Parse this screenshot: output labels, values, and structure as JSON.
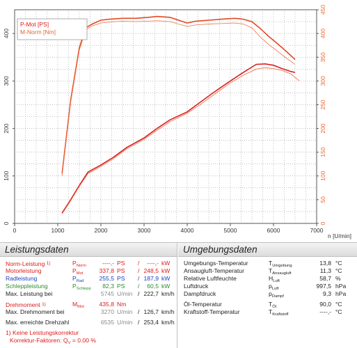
{
  "chart_data": {
    "type": "line",
    "legend": [
      "P-Mot [PS]",
      "M-Norm [Nm]"
    ],
    "legend_position": "top-left",
    "xlabel": "n [U/min]",
    "xlim": [
      0,
      7000
    ],
    "x_ticks": [
      0,
      1000,
      2000,
      3000,
      4000,
      5000,
      6000,
      7000
    ],
    "left_axis": {
      "ylim": [
        0,
        450
      ],
      "ticks": [
        0,
        100,
        200,
        300,
        400
      ]
    },
    "right_axis": {
      "ylim": [
        0,
        450
      ],
      "ticks": [
        0,
        50,
        100,
        150,
        200,
        250,
        300,
        350,
        400,
        450
      ]
    },
    "grid": true,
    "series": [
      {
        "name": "P-Mot [PS]",
        "role": "power",
        "variant": "thick",
        "color": "#d42020",
        "axis": "left",
        "x": [
          1100,
          1300,
          1500,
          1700,
          2000,
          2300,
          2600,
          3000,
          3300,
          3600,
          4000,
          4300,
          4600,
          5000,
          5300,
          5600,
          5800,
          6000,
          6200,
          6400,
          6500
        ],
        "y": [
          22,
          50,
          80,
          108,
          123,
          140,
          160,
          180,
          200,
          218,
          235,
          255,
          275,
          300,
          318,
          335,
          336,
          333,
          326,
          320,
          318
        ]
      },
      {
        "name": "P-Mot [PS]",
        "role": "power",
        "variant": "thin",
        "color": "#ef7050",
        "axis": "left",
        "x": [
          1100,
          1300,
          1500,
          1700,
          2000,
          2300,
          2600,
          3000,
          3300,
          3600,
          4000,
          4300,
          4600,
          5000,
          5300,
          5600,
          5800,
          6000,
          6200,
          6400,
          6600
        ],
        "y": [
          20,
          48,
          78,
          105,
          120,
          137,
          157,
          177,
          196,
          214,
          232,
          250,
          270,
          296,
          312,
          325,
          328,
          326,
          322,
          315,
          300
        ]
      },
      {
        "name": "M-Norm [Nm]",
        "role": "torque",
        "variant": "thick",
        "color": "#e04a20",
        "axis": "right",
        "x": [
          1100,
          1300,
          1500,
          1650,
          1800,
          2000,
          2200,
          2500,
          2800,
          3100,
          3300,
          3600,
          3800,
          4000,
          4200,
          4500,
          4800,
          5100,
          5300,
          5500,
          5700,
          5900,
          6100,
          6300,
          6500
        ],
        "y": [
          105,
          260,
          370,
          412,
          420,
          428,
          430,
          432,
          432,
          434,
          436,
          434,
          428,
          422,
          426,
          428,
          430,
          432,
          430,
          425,
          410,
          393,
          378,
          362,
          345
        ]
      },
      {
        "name": "M-Norm [Nm]",
        "role": "torque",
        "variant": "thin",
        "color": "#f08060",
        "axis": "right",
        "x": [
          1100,
          1300,
          1500,
          1650,
          1800,
          2000,
          2200,
          2500,
          2800,
          3100,
          3300,
          3600,
          3800,
          4000,
          4200,
          4500,
          4800,
          5100,
          5300,
          5500,
          5700,
          5900,
          6100,
          6300,
          6500
        ],
        "y": [
          100,
          255,
          365,
          408,
          416,
          422,
          424,
          426,
          425,
          426,
          427,
          425,
          420,
          415,
          418,
          420,
          421,
          422,
          420,
          412,
          392,
          376,
          362,
          348,
          335
        ]
      }
    ]
  },
  "panels": {
    "left_title": "Leistungsdaten",
    "right_title": "Umgebungsdaten"
  },
  "leistung": {
    "norm": {
      "label": "Norm-Leistung",
      "note": "1)",
      "sym": "P",
      "sub": "Norm",
      "val1": "----,-",
      "unit1": "PS",
      "sep": "/",
      "val2": "----,-",
      "unit2": "kW"
    },
    "motor": {
      "label": "Motorleistung",
      "sym": "P",
      "sub": "Mot",
      "val1": "337,8",
      "unit1": "PS",
      "sep": "/",
      "val2": "248,5",
      "unit2": "kW"
    },
    "rad": {
      "label": "Radleistung",
      "sym": "P",
      "sub": "Rad",
      "val1": "255,5",
      "unit1": "PS",
      "sep": "/",
      "val2": "187,9",
      "unit2": "kW"
    },
    "schlepp": {
      "label": "Schleppleistung",
      "sym": "P",
      "sub": "Schlepp",
      "val1": "82,3",
      "unit1": "PS",
      "sep": "/",
      "val2": "60,5",
      "unit2": "kW"
    },
    "maxbei": {
      "label": "Max. Leistung bei",
      "val1": "5745",
      "unit1": "U/min",
      "sep": "/",
      "val2": "222,7",
      "unit2": "km/h"
    },
    "dreh": {
      "label": "Drehmoment",
      "note": "1)",
      "sym": "M",
      "sub": "Mot",
      "val1": "435,8",
      "unit1": "Nm"
    },
    "maxdreh": {
      "label": "Max. Drehmoment bei",
      "val1": "3270",
      "unit1": "U/min",
      "sep": "/",
      "val2": "126,7",
      "unit2": "km/h"
    },
    "maxdz": {
      "label": "Max. erreichte Drehzahl",
      "val1": "6535",
      "unit1": "U/min",
      "sep": "/",
      "val2": "253,4",
      "unit2": "km/h"
    },
    "footnote1": "1) Keine Leistungskorrektur",
    "footnote2_label": "Korrektur-Faktoren: Q",
    "footnote2_sub": "V",
    "footnote2_value": "=   0.00 %"
  },
  "umgebung": [
    {
      "label": "Umgebungs-Temperatur",
      "sym": "T",
      "sub": "Umgebung",
      "value": "13,8",
      "unit": "°C"
    },
    {
      "label": "Ansaugluft-Temperatur",
      "sym": "T",
      "sub": "Ansaugluft",
      "value": "11,3",
      "unit": "°C"
    },
    {
      "label": "Relative Luftfeuchte",
      "sym": "H",
      "sub": "Luft",
      "value": "58,7",
      "unit": "%"
    },
    {
      "label": "Luftdruck",
      "sym": "p",
      "sub": "Luft",
      "value": "997,5",
      "unit": "hPa"
    },
    {
      "label": "Dampfdruck",
      "sym": "p",
      "sub": "Dampf",
      "value": "9,3",
      "unit": "hPa"
    },
    {
      "label": "Öl-Temperatur",
      "sym": "T",
      "sub": "Öl",
      "value": "90,0",
      "unit": "°C"
    },
    {
      "label": "Kraftstoff-Temperatur",
      "sym": "T",
      "sub": "Kraftstoff",
      "value": "----,-",
      "unit": "°C"
    }
  ]
}
